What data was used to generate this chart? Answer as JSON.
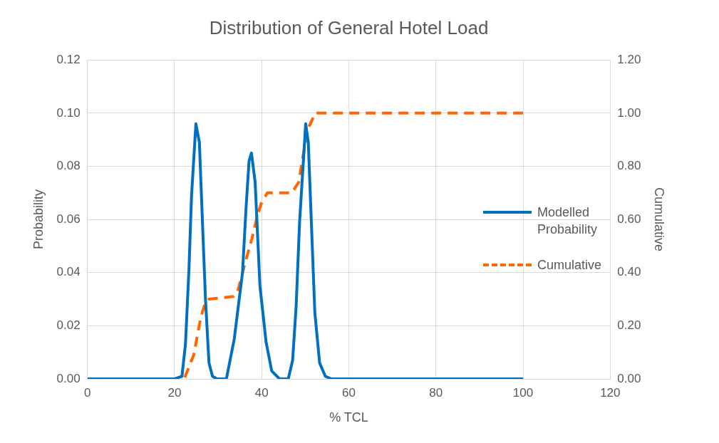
{
  "chart_data": {
    "type": "line",
    "title": "Distribution of General Hotel Load",
    "xlabel": "% TCL",
    "ylabel": "Probability",
    "y2label": "Cumulative",
    "xlim": [
      0,
      120
    ],
    "xticks": [
      0,
      20,
      40,
      60,
      80,
      100,
      120
    ],
    "ylim": [
      0,
      0.12
    ],
    "yticks": [
      {
        "value": 0,
        "label": "0.00"
      },
      {
        "value": 0.02,
        "label": "0.02"
      },
      {
        "value": 0.04,
        "label": "0.04"
      },
      {
        "value": 0.06,
        "label": "0.06"
      },
      {
        "value": 0.08,
        "label": "0.08"
      },
      {
        "value": 0.1,
        "label": "0.10"
      },
      {
        "value": 0.12,
        "label": "0.12"
      }
    ],
    "y2lim": [
      0,
      1.2
    ],
    "y2ticks": [
      {
        "value": 0,
        "label": "0.00"
      },
      {
        "value": 0.2,
        "label": "0.20"
      },
      {
        "value": 0.4,
        "label": "0.40"
      },
      {
        "value": 0.6,
        "label": "0.60"
      },
      {
        "value": 0.8,
        "label": "0.80"
      },
      {
        "value": 1,
        "label": "1.00"
      },
      {
        "value": 1.2,
        "label": "1.20"
      }
    ],
    "grid": true,
    "legend": "right",
    "marker": "none",
    "series": [
      {
        "name": "Modelled Probability",
        "color": "#0070c0",
        "line_style": "solid",
        "x": [
          0,
          20,
          21.7,
          22.5,
          23.3,
          23.9,
          24.9,
          25.7,
          26.5,
          27.1,
          27.9,
          28.7,
          29.7,
          31.9,
          33.7,
          35.6,
          36.4,
          37.1,
          37.65,
          38.5,
          39.6,
          41,
          42.3,
          44.1,
          46.1,
          47.1,
          47.9,
          48.7,
          50.1,
          50.7,
          51.4,
          52.2,
          53.3,
          54.6,
          56,
          100
        ],
        "values": [
          0,
          0,
          0.001,
          0.013,
          0.041,
          0.069,
          0.096,
          0.089,
          0.055,
          0.03,
          0.006,
          0.001,
          0,
          0,
          0.015,
          0.04,
          0.064,
          0.082,
          0.085,
          0.074,
          0.035,
          0.014,
          0.003,
          0,
          0,
          0.007,
          0.027,
          0.059,
          0.096,
          0.089,
          0.059,
          0.025,
          0.006,
          0.001,
          0,
          0
        ]
      },
      {
        "name": "Cumulative",
        "color": "#ff6600",
        "line_style": "dashed",
        "axis": "y2",
        "x": [
          0,
          21,
          22.2,
          24.4,
          26,
          27.1,
          27.9,
          33.5,
          34.5,
          36.1,
          37.8,
          39.1,
          39.9,
          41.3,
          46.9,
          48.5,
          49.5,
          50.6,
          52,
          52.2,
          100
        ],
        "values": [
          0,
          0,
          0,
          0.09,
          0.23,
          0.29,
          0.3,
          0.31,
          0.33,
          0.43,
          0.53,
          0.62,
          0.66,
          0.7,
          0.7,
          0.74,
          0.84,
          0.94,
          0.99,
          1,
          1
        ]
      }
    ]
  }
}
